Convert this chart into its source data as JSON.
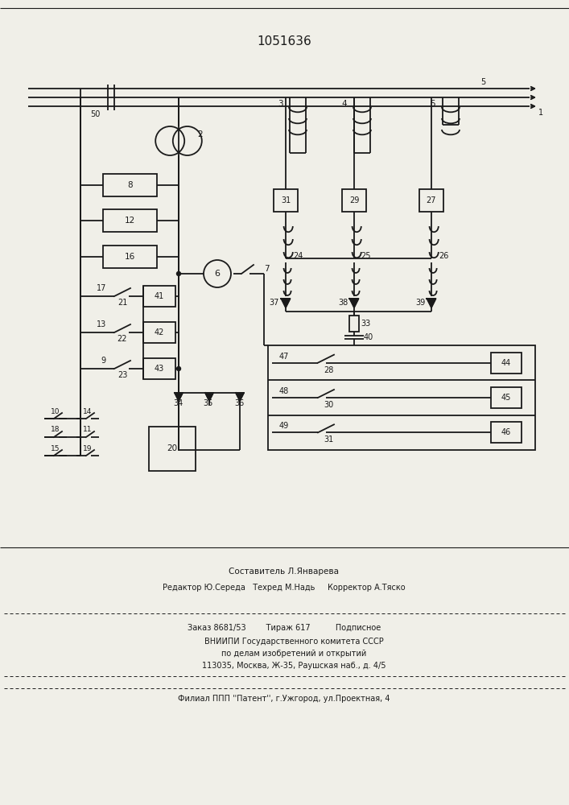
{
  "title": "1051636",
  "bg_color": "#f0efe8",
  "line_color": "#1a1a1a",
  "footer_lines": [
    "Составитель Л.Январева",
    "Редактор Ю.Середа   Техред М.Надь     Корректор А.Тяско",
    "Заказ 8681/53        Тираж 617          Подписное",
    "        ВНИИПИ Государственного комитета СССР",
    "        по делам изобретений и открытий",
    "        113035, Москва, Ж-35, Раушская наб., д. 4/5",
    "Филиал ППП ''Патент'', г.Ужгород, ул.Проектная, 4"
  ]
}
